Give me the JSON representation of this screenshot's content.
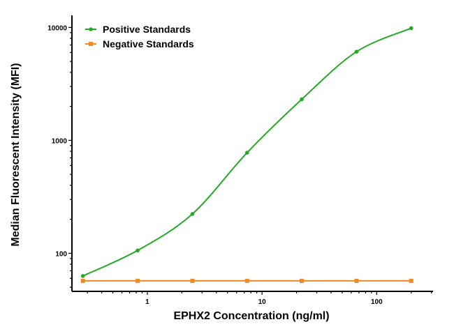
{
  "chart_data": {
    "type": "line",
    "title": "",
    "xlabel": "EPHX2 Concentration (ng/ml)",
    "ylabel": "Median Fluorescent Intensity (MFI)",
    "x_scale": "log",
    "y_scale": "log",
    "xlim": [
      0.22,
      310
    ],
    "ylim": [
      46,
      12800
    ],
    "x_ticks": [
      {
        "value": 1,
        "label": "1"
      },
      {
        "value": 10,
        "label": "10"
      },
      {
        "value": 100,
        "label": "100"
      }
    ],
    "y_ticks": [
      {
        "value": 100,
        "label": "100"
      },
      {
        "value": 1000,
        "label": "1000"
      },
      {
        "value": 10000,
        "label": "10000"
      }
    ],
    "grid": false,
    "legend_position": "top-left",
    "x": [
      0.274,
      0.823,
      2.47,
      7.41,
      22.2,
      66.7,
      200
    ],
    "series": [
      {
        "name": "Positive Standards",
        "color": "#22aa22",
        "marker": "circle",
        "fit": "smooth-curve",
        "values": [
          63,
          106,
          223,
          778,
          2310,
          6100,
          9850
        ]
      },
      {
        "name": "Negative Standards",
        "color": "#f08a24",
        "marker": "square",
        "fit": "line",
        "values": [
          57,
          57,
          57,
          57,
          57,
          57,
          57
        ]
      }
    ]
  }
}
